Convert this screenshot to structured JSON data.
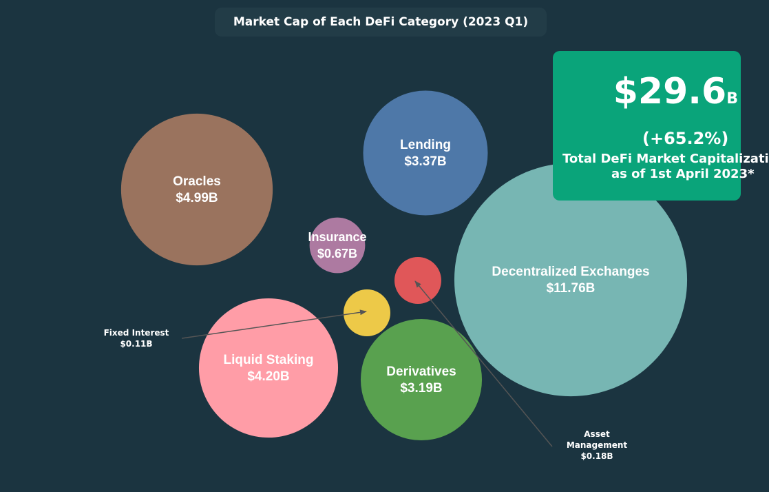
{
  "title": "Market Cap of Each DeFi Category (2023 Q1)",
  "summary": {
    "total_value": "$29.6",
    "total_unit": "B",
    "change": "(+65.2%)",
    "caption_line1": "Total DeFi Market Capitalization",
    "caption_line2": "as of 1st April 2023*"
  },
  "chart_data": {
    "type": "bubble",
    "unit": "$B",
    "series": [
      {
        "name": "Oracles",
        "label": "$4.99B",
        "value": 4.99,
        "color": "#9a735e"
      },
      {
        "name": "Lending",
        "label": "$3.37B",
        "value": 3.37,
        "color": "#4e78a8"
      },
      {
        "name": "Insurance",
        "label": "$0.67B",
        "value": 0.67,
        "color": "#ad7aa1"
      },
      {
        "name": "Decentralized Exchanges",
        "label": "$11.76B",
        "value": 11.76,
        "color": "#77b6b3"
      },
      {
        "name": "Asset Management",
        "label": "$0.18B",
        "value": 0.18,
        "color": "#e05759"
      },
      {
        "name": "Fixed Interest",
        "label": "$0.11B",
        "value": 0.11,
        "color": "#edc948"
      },
      {
        "name": "Liquid Staking",
        "label": "$4.20B",
        "value": 4.2,
        "color": "#ff9da7"
      },
      {
        "name": "Derivatives",
        "label": "$3.19B",
        "value": 3.19,
        "color": "#59a14f"
      }
    ],
    "callouts": [
      {
        "series": "Fixed Interest",
        "lines": [
          "Fixed Interest",
          "$0.11B"
        ]
      },
      {
        "series": "Asset Management",
        "lines": [
          "Asset",
          "Management",
          "$0.18B"
        ]
      }
    ]
  }
}
